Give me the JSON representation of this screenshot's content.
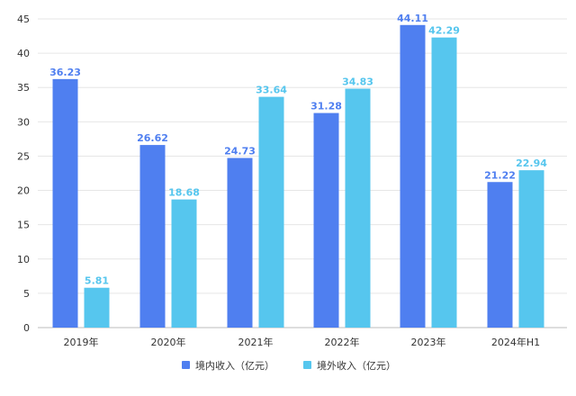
{
  "chart_data": {
    "type": "bar",
    "categories": [
      "2019年",
      "2020年",
      "2021年",
      "2022年",
      "2023年",
      "2024年H1"
    ],
    "series": [
      {
        "name": "境内收入（亿元）",
        "color": "#4f7ff0",
        "values": [
          36.23,
          26.62,
          24.73,
          31.28,
          44.11,
          21.22
        ]
      },
      {
        "name": "境外收入（亿元）",
        "color": "#56c6ee",
        "values": [
          5.81,
          18.68,
          33.64,
          34.83,
          42.29,
          22.94
        ]
      }
    ],
    "value_labels": [
      [
        "36.23",
        "26.62",
        "24.73",
        "31.28",
        "44.11",
        "21.22"
      ],
      [
        "5.81",
        "18.68",
        "33.64",
        "34.83",
        "42.29",
        "22.94"
      ]
    ],
    "yticks": [
      0,
      5,
      10,
      15,
      20,
      25,
      30,
      35,
      40,
      45
    ],
    "ylim": [
      0,
      45
    ],
    "grid": true,
    "legend_position": "bottom-center",
    "title": "",
    "xlabel": "",
    "ylabel": ""
  }
}
